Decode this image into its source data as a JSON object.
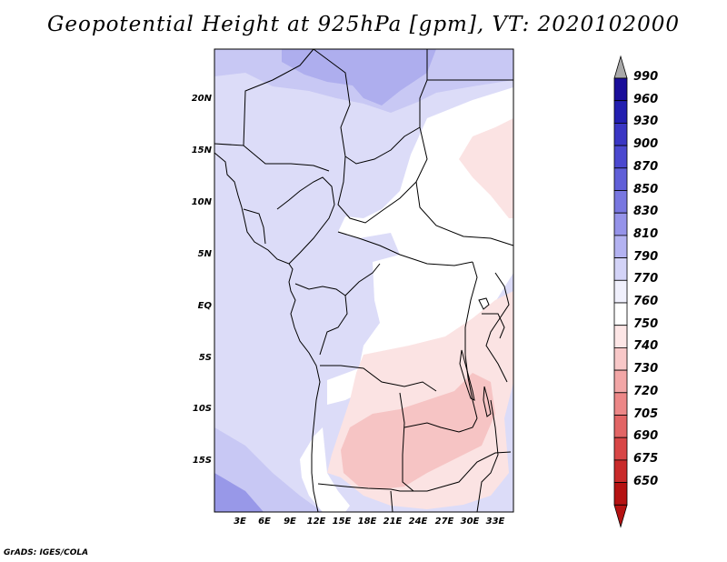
{
  "title": "Geopotential Height at 925hPa [gpm], VT: 2020102000",
  "credit": "GrADS: IGES/COLA",
  "lat_labels": [
    "20N",
    "15N",
    "10N",
    "5N",
    "EQ",
    "5S",
    "10S",
    "15S"
  ],
  "lon_labels": [
    "3E",
    "6E",
    "9E",
    "12E",
    "15E",
    "18E",
    "21E",
    "24E",
    "27E",
    "30E",
    "33E"
  ],
  "colorbar": {
    "levels": [
      "990",
      "960",
      "930",
      "900",
      "870",
      "850",
      "830",
      "810",
      "790",
      "770",
      "760",
      "750",
      "740",
      "730",
      "720",
      "705",
      "690",
      "675",
      "650"
    ],
    "colors": [
      "#1a0e9a",
      "#231fb0",
      "#3a36c4",
      "#4b48cf",
      "#605fd8",
      "#7877e0",
      "#9593e9",
      "#b3b2f1",
      "#d3d3f7",
      "#f0f0fc",
      "#ffffff",
      "#fde6e6",
      "#f8c8c8",
      "#f2a6a6",
      "#ec8787",
      "#e26565",
      "#d84646",
      "#c92a2a",
      "#b51212"
    ],
    "top_color": "#a9a9a9",
    "bottom_color": "#b51212"
  },
  "map_colors": {
    "lav_light": "#dcdcf8",
    "lav_mid": "#c8c8f4",
    "lav_dark": "#aeaeee",
    "lav_deep": "#9898e8",
    "white": "#ffffff",
    "pink_light": "#fbe3e3",
    "pink_mid": "#f6c4c4",
    "pink_dark": "#ef9e9e"
  }
}
